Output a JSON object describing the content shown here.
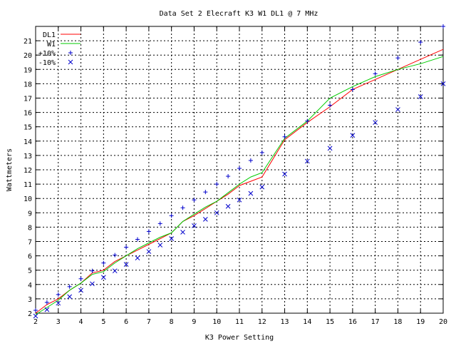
{
  "chart_data": {
    "type": "line",
    "title": "Data Set 2 Elecraft K3 W1 DL1 @ 7 MHz",
    "xlabel": "K3 Power Setting",
    "ylabel": "Wattmeters",
    "xlim": [
      2,
      20
    ],
    "ylim": [
      2,
      22
    ],
    "x_ticks": [
      2,
      3,
      4,
      5,
      6,
      7,
      8,
      9,
      10,
      11,
      12,
      13,
      14,
      15,
      16,
      17,
      18,
      19,
      20
    ],
    "y_ticks": [
      2,
      3,
      4,
      5,
      6,
      7,
      8,
      9,
      10,
      11,
      12,
      13,
      14,
      15,
      16,
      17,
      18,
      19,
      20,
      21
    ],
    "grid": true,
    "legend_position": "top-left",
    "series": [
      {
        "name": "DL1",
        "kind": "line",
        "color": "#ff0000",
        "x": [
          2,
          2.5,
          3,
          3.5,
          4,
          4.5,
          5,
          5.5,
          6,
          6.5,
          7,
          7.5,
          8,
          8.5,
          9,
          9.5,
          10,
          10.5,
          11,
          11.5,
          12,
          13,
          14,
          15,
          16,
          17,
          18,
          19,
          20
        ],
        "y": [
          2.0,
          2.6,
          3.0,
          3.6,
          4.1,
          4.8,
          5.0,
          5.6,
          6.0,
          6.4,
          6.8,
          7.2,
          7.6,
          8.4,
          8.8,
          9.3,
          9.8,
          10.3,
          10.9,
          11.2,
          11.5,
          14.1,
          15.3,
          16.4,
          17.6,
          18.3,
          19.0,
          19.7,
          20.4
        ]
      },
      {
        "name": "W1",
        "kind": "line",
        "color": "#00cc00",
        "x": [
          2,
          2.5,
          3,
          3.5,
          4,
          4.5,
          5,
          5.5,
          6,
          6.5,
          7,
          7.5,
          8,
          8.5,
          9,
          9.5,
          10,
          10.5,
          11,
          11.5,
          12,
          13,
          14,
          15,
          16,
          17,
          18,
          19,
          20
        ],
        "y": [
          1.9,
          2.4,
          2.9,
          3.6,
          4.1,
          4.7,
          4.9,
          5.5,
          6.0,
          6.5,
          6.9,
          7.3,
          7.6,
          8.4,
          8.9,
          9.4,
          9.8,
          10.4,
          11.0,
          11.5,
          11.8,
          14.2,
          15.4,
          17.0,
          17.8,
          18.5,
          19.0,
          19.4,
          19.9
        ]
      },
      {
        "name": "+10%",
        "kind": "marker",
        "marker": "+",
        "color": "#0000cc",
        "x": [
          2,
          2.5,
          3,
          3.5,
          4,
          4.5,
          5,
          5.5,
          6,
          6.5,
          7,
          7.5,
          8,
          8.5,
          9,
          9.5,
          10,
          10.5,
          11,
          11.5,
          12,
          13,
          14,
          15,
          16,
          17,
          18,
          19,
          20
        ],
        "y": [
          2.2,
          2.75,
          3.3,
          3.85,
          4.4,
          4.95,
          5.5,
          6.05,
          6.6,
          7.15,
          7.7,
          8.25,
          8.8,
          9.35,
          9.9,
          10.45,
          11.0,
          11.55,
          12.1,
          12.65,
          13.2,
          14.3,
          15.4,
          16.5,
          17.6,
          18.7,
          19.8,
          20.9,
          22.0
        ]
      },
      {
        "name": "-10%",
        "kind": "marker",
        "marker": "x",
        "color": "#0000cc",
        "x": [
          2,
          2.5,
          3,
          3.5,
          4,
          4.5,
          5,
          5.5,
          6,
          6.5,
          7,
          7.5,
          8,
          8.5,
          9,
          9.5,
          10,
          10.5,
          11,
          11.5,
          12,
          13,
          14,
          15,
          16,
          17,
          18,
          19,
          20
        ],
        "y": [
          1.8,
          2.25,
          2.7,
          3.15,
          3.6,
          4.05,
          4.5,
          4.95,
          5.4,
          5.85,
          6.3,
          6.75,
          7.2,
          7.65,
          8.1,
          8.55,
          9.0,
          9.45,
          9.9,
          10.35,
          10.8,
          11.7,
          12.6,
          13.5,
          14.4,
          15.3,
          16.2,
          17.1,
          18.0
        ]
      }
    ]
  }
}
